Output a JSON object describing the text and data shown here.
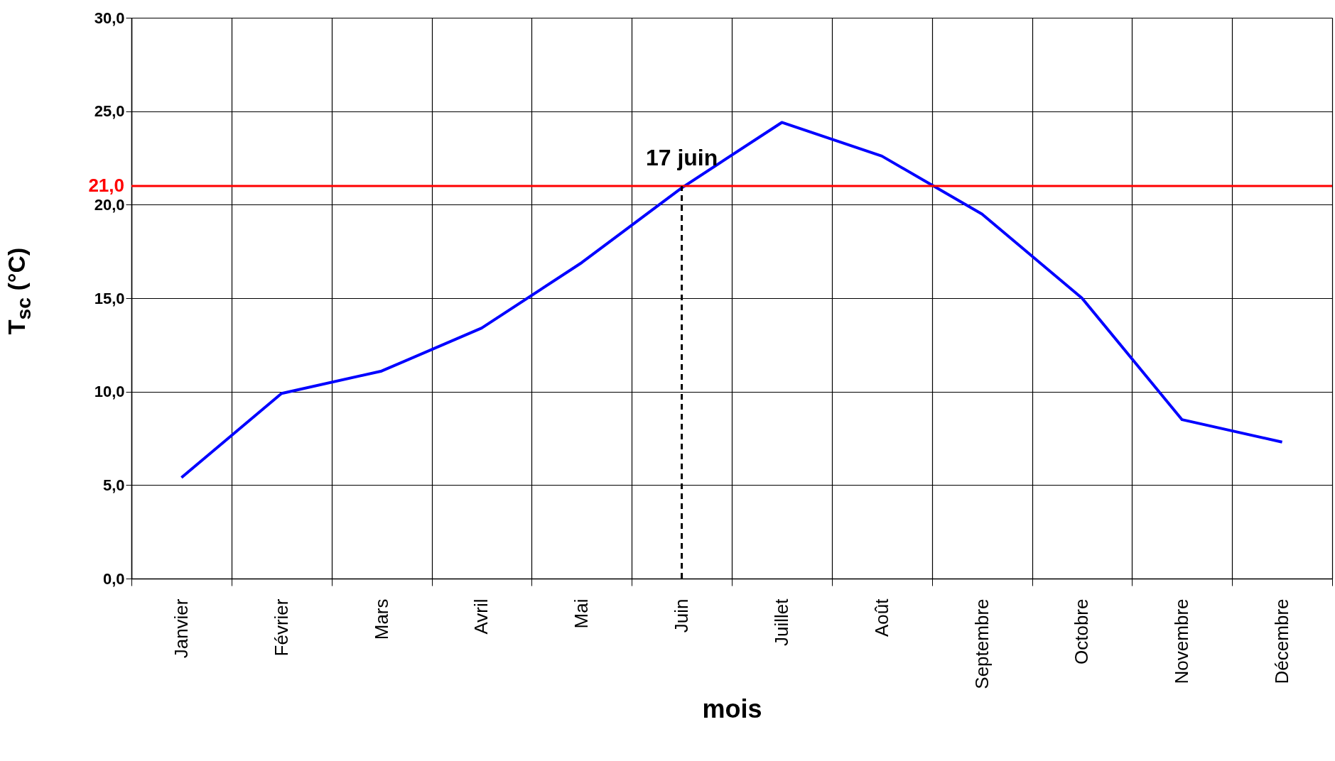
{
  "chart_data": {
    "type": "line",
    "xlabel": "mois",
    "ylabel": "T$_{sc}$ (°C)",
    "categories": [
      "Janvier",
      "Février",
      "Mars",
      "Avril",
      "Mai",
      "Juin",
      "Juillet",
      "Août",
      "Septembre",
      "Octobre",
      "Novembre",
      "Décembre"
    ],
    "series": [
      {
        "color": "#0000ff",
        "values": [
          5.4,
          9.9,
          11.1,
          13.4,
          16.9,
          20.9,
          24.4,
          22.6,
          19.5,
          15.0,
          8.5,
          7.3
        ]
      }
    ],
    "ylim": [
      0,
      30
    ],
    "yticks": [
      {
        "value": 0,
        "label": "0,0"
      },
      {
        "value": 5,
        "label": "5,0"
      },
      {
        "value": 10,
        "label": "10,0"
      },
      {
        "value": 15,
        "label": "15,0"
      },
      {
        "value": 20,
        "label": "20,0"
      },
      {
        "value": 25,
        "label": "25,0"
      },
      {
        "value": 30,
        "label": "30,0"
      }
    ],
    "ref_lines": [
      {
        "axis": "y",
        "value": 21,
        "label": "21,0",
        "color": "#ff0000",
        "line_style": "solid"
      },
      {
        "axis": "x",
        "value": "Juin",
        "color": "#000000",
        "line_style": "dashed"
      }
    ],
    "annotations": [
      {
        "text": "17 juin",
        "x": "Juin",
        "y": 21
      }
    ],
    "grid": true,
    "marker": "none",
    "line_style": "solid"
  }
}
